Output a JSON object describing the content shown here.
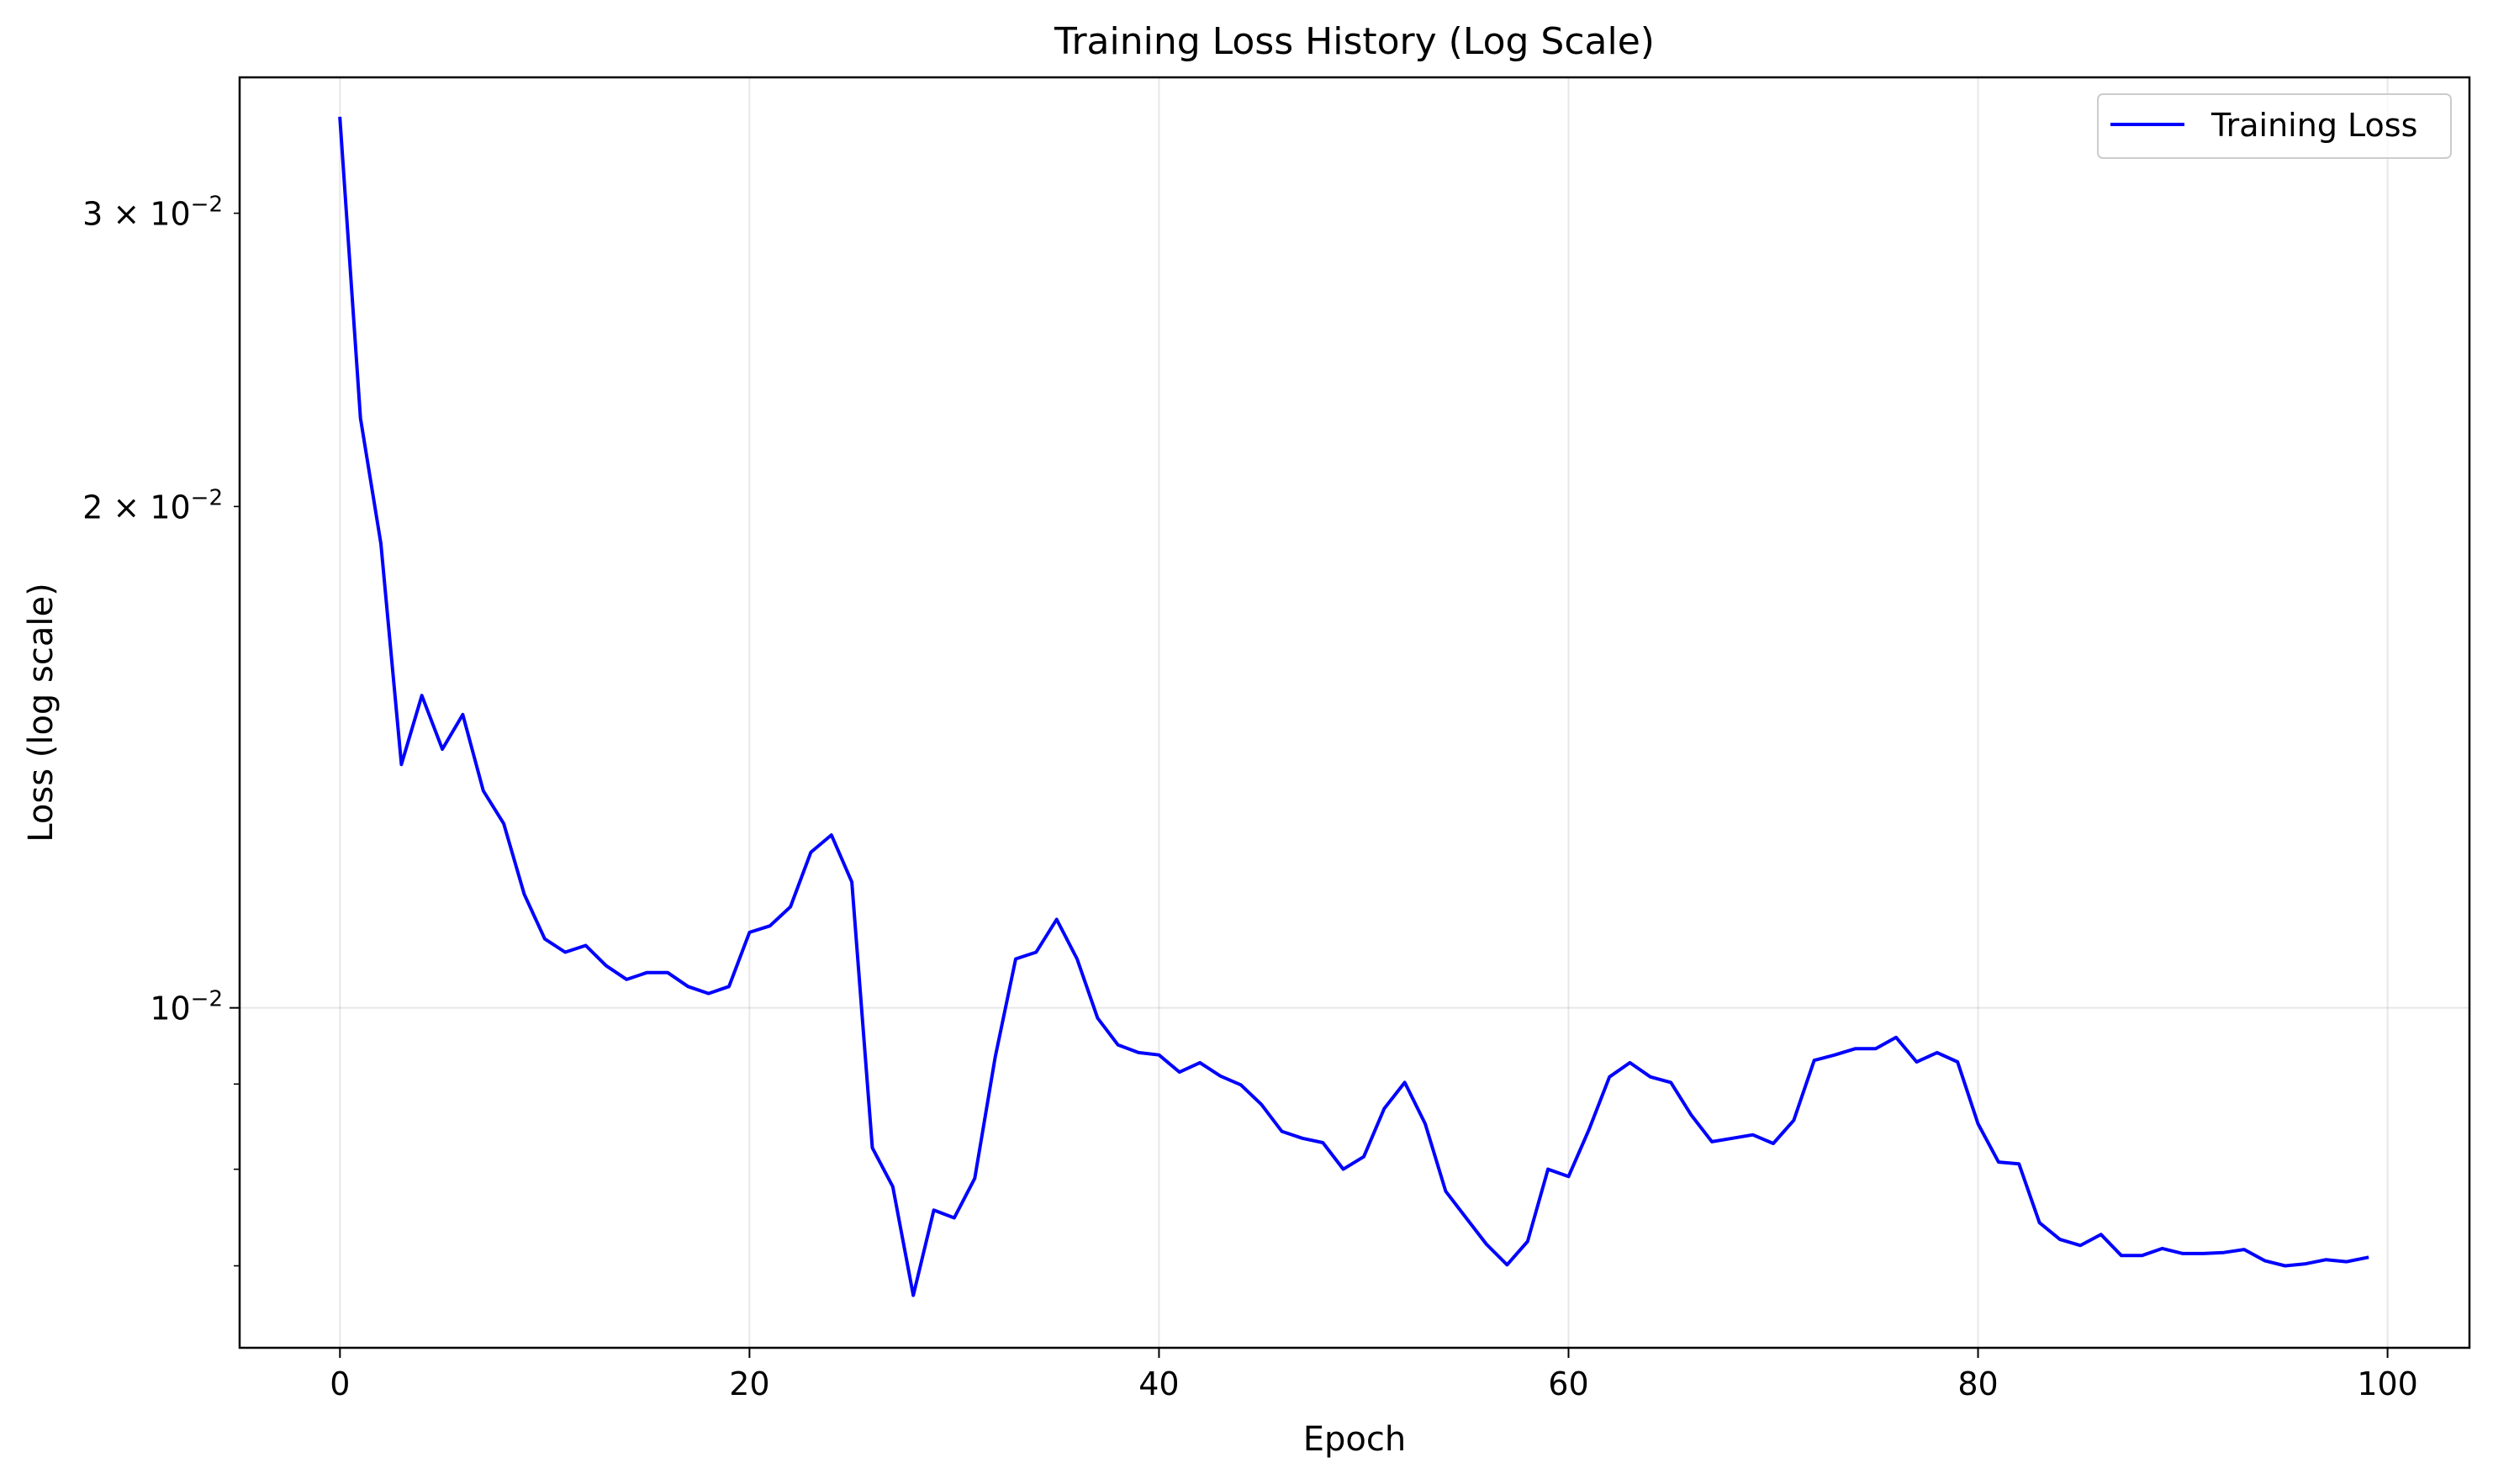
{
  "chart_data": {
    "type": "line",
    "title": "Training Loss History (Log Scale)",
    "xlabel": "Epoch",
    "ylabel": "Loss (log scale)",
    "xlim": [
      -4.9,
      104
    ],
    "ylim": [
      0.00625,
      0.0362
    ],
    "yscale": "log",
    "grid": true,
    "legend_position": "top-right",
    "x_ticks": [
      {
        "value": 0,
        "label": "0"
      },
      {
        "value": 20,
        "label": "20"
      },
      {
        "value": 40,
        "label": "40"
      },
      {
        "value": 60,
        "label": "60"
      },
      {
        "value": 80,
        "label": "80"
      },
      {
        "value": 100,
        "label": "100"
      }
    ],
    "y_major_ticks": [
      {
        "value": 0.01,
        "base": "10",
        "exp": "−2",
        "prefix": ""
      }
    ],
    "y_minor_ticks": [
      {
        "value": 0.007
      },
      {
        "value": 0.008
      },
      {
        "value": 0.009
      },
      {
        "value": 0.02,
        "base": "10",
        "exp": "−2",
        "prefix": "2 × "
      },
      {
        "value": 0.03,
        "base": "10",
        "exp": "−2",
        "prefix": "3 × "
      }
    ],
    "series": [
      {
        "name": "Training Loss",
        "color": "#0000ff",
        "x": [
          0,
          1,
          2,
          3,
          4,
          5,
          6,
          7,
          8,
          9,
          10,
          11,
          12,
          13,
          14,
          15,
          16,
          17,
          18,
          19,
          20,
          21,
          22,
          23,
          24,
          25,
          26,
          27,
          28,
          29,
          30,
          31,
          32,
          33,
          34,
          35,
          36,
          37,
          38,
          39,
          40,
          41,
          42,
          43,
          44,
          45,
          46,
          47,
          48,
          49,
          50,
          51,
          52,
          53,
          54,
          55,
          56,
          57,
          58,
          59,
          60,
          61,
          62,
          63,
          64,
          65,
          66,
          67,
          68,
          69,
          70,
          71,
          72,
          73,
          74,
          75,
          76,
          77,
          78,
          79,
          80,
          81,
          82,
          83,
          84,
          85,
          86,
          87,
          88,
          89,
          90,
          91,
          92,
          93,
          94,
          95,
          96,
          97,
          98,
          99
        ],
        "values": [
          0.0342,
          0.0226,
          0.019,
          0.014,
          0.0154,
          0.0143,
          0.015,
          0.0135,
          0.0129,
          0.0117,
          0.011,
          0.0108,
          0.0109,
          0.0106,
          0.0104,
          0.0105,
          0.0105,
          0.0103,
          0.0102,
          0.0103,
          0.0111,
          0.0112,
          0.0115,
          0.0124,
          0.0127,
          0.0119,
          0.00824,
          0.00781,
          0.00672,
          0.00756,
          0.00748,
          0.0079,
          0.00934,
          0.0107,
          0.0108,
          0.0113,
          0.0107,
          0.00986,
          0.0095,
          0.0094,
          0.00937,
          0.00915,
          0.00927,
          0.0091,
          0.00899,
          0.00875,
          0.00843,
          0.00835,
          0.0083,
          0.008,
          0.00814,
          0.0087,
          0.00902,
          0.00852,
          0.00776,
          0.00748,
          0.00721,
          0.00701,
          0.00724,
          0.008,
          0.00792,
          0.00845,
          0.00909,
          0.00927,
          0.00909,
          0.00902,
          0.00862,
          0.00831,
          0.00835,
          0.00839,
          0.00829,
          0.00856,
          0.0093,
          0.00937,
          0.00945,
          0.00945,
          0.0096,
          0.00928,
          0.0094,
          0.00928,
          0.00852,
          0.00808,
          0.00806,
          0.00743,
          0.00726,
          0.0072,
          0.00731,
          0.0071,
          0.0071,
          0.00717,
          0.00712,
          0.00712,
          0.00713,
          0.00716,
          0.00705,
          0.007,
          0.00702,
          0.00706,
          0.00704,
          0.00708
        ]
      }
    ]
  }
}
